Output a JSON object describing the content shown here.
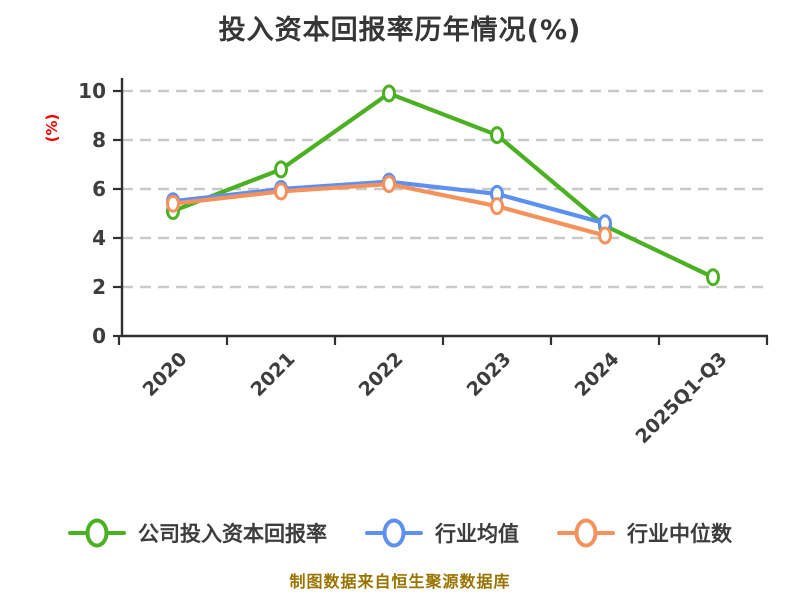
{
  "title": "投入资本回报率历年情况(%)",
  "footer": "制图数据来自恒生聚源数据库",
  "colors": {
    "background": "#ffffff",
    "title": "#363636",
    "axis": "#2f2f2f",
    "tick_label": "#3d3d3d",
    "grid": "#c9c9c9",
    "y_unit_label": "#ff0000",
    "footer": "#9a7400",
    "marker_fill": "#ffffff"
  },
  "chart_data": {
    "type": "line",
    "title": "投入资本回报率历年情况(%)",
    "categories": [
      "2020",
      "2021",
      "2022",
      "2023",
      "2024",
      "2025Q1-Q3"
    ],
    "series": [
      {
        "name": "公司投入资本回报率",
        "color": "#4cb122",
        "values": [
          5.1,
          6.8,
          9.9,
          8.2,
          4.5,
          2.4
        ]
      },
      {
        "name": "行业均值",
        "color": "#5e90f2",
        "values": [
          5.5,
          6.0,
          6.3,
          5.8,
          4.6,
          null
        ]
      },
      {
        "name": "行业中位数",
        "color": "#f5925c",
        "values": [
          5.4,
          5.9,
          6.2,
          5.3,
          4.1,
          null
        ]
      }
    ],
    "ylabel": "(%)",
    "xlabel": "",
    "ylim": [
      0,
      10
    ],
    "yticks": [
      0,
      2,
      4,
      6,
      8,
      10
    ],
    "grid": "horizontal-dashed",
    "legend_position": "bottom",
    "x_tick_rotation": 45
  }
}
